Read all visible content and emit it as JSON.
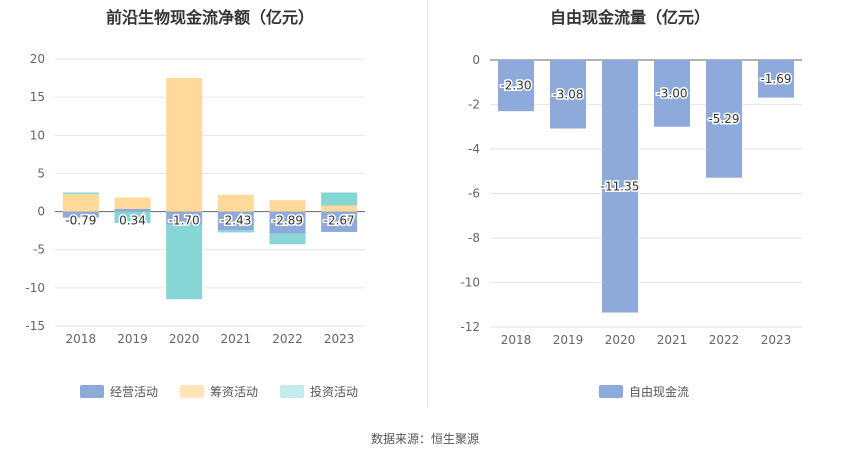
{
  "chart_data": [
    {
      "type": "bar",
      "stacked": true,
      "title": "前沿生物现金流净额（亿元）",
      "categories": [
        "2018",
        "2019",
        "2020",
        "2021",
        "2022",
        "2023"
      ],
      "ylim": [
        -15,
        20
      ],
      "yticks": [
        20,
        15,
        10,
        5,
        0,
        -5,
        -10,
        -15
      ],
      "grid": true,
      "legend_position": "bottom",
      "series": [
        {
          "name": "经营活动",
          "color": "#8eaadb",
          "values": [
            -0.79,
            0.34,
            -1.7,
            -2.43,
            -2.89,
            -2.67
          ],
          "labels": [
            "-0.79",
            "0.34",
            "-1.70",
            "-2.43",
            "-2.89",
            "-2.67"
          ]
        },
        {
          "name": "筹资活动",
          "color": "#ffd999",
          "values": [
            2.3,
            1.5,
            17.5,
            2.2,
            1.5,
            0.8
          ]
        },
        {
          "name": "投资活动",
          "color": "#86d6d6",
          "values": [
            0.2,
            -1.5,
            -9.8,
            -0.3,
            -1.4,
            1.7
          ]
        }
      ]
    },
    {
      "type": "bar",
      "title": "自由现金流量（亿元）",
      "categories": [
        "2018",
        "2019",
        "2020",
        "2021",
        "2022",
        "2023"
      ],
      "ylim": [
        -12,
        0
      ],
      "yticks": [
        0,
        -2,
        -4,
        -6,
        -8,
        -10,
        -12
      ],
      "grid": true,
      "legend_position": "bottom",
      "series": [
        {
          "name": "自由现金流",
          "color": "#8eaadb",
          "values": [
            -2.3,
            -3.08,
            -11.35,
            -3.0,
            -5.29,
            -1.69
          ],
          "labels": [
            "-2.30",
            "-3.08",
            "-11.35",
            "-3.00",
            "-5.29",
            "-1.69"
          ]
        }
      ]
    }
  ],
  "footer": {
    "source": "数据来源：恒生聚源"
  }
}
